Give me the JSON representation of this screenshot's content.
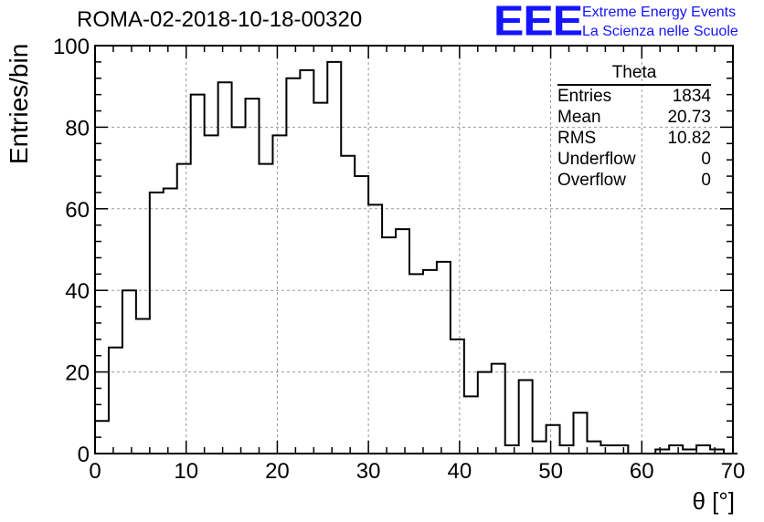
{
  "header": {
    "run_title": "ROMA-02-2018-10-18-00320",
    "logo_mark": "EEE",
    "logo_line1": "Extreme Energy Events",
    "logo_line2": "La Scienza nelle Scuole",
    "logo_color": "#1414ff"
  },
  "stats_box": {
    "title": "Theta",
    "rows": [
      {
        "label": "Entries",
        "value": "1834"
      },
      {
        "label": "Mean",
        "value": "20.73"
      },
      {
        "label": "RMS",
        "value": "10.82"
      },
      {
        "label": "Underflow",
        "value": "0"
      },
      {
        "label": "Overflow",
        "value": "0"
      }
    ]
  },
  "chart_data": {
    "type": "bar",
    "title": "ROMA-02-2018-10-18-00320",
    "xlabel": "θ [°]",
    "ylabel": "Entries/bin",
    "xlim": [
      0,
      70
    ],
    "ylim": [
      0,
      100
    ],
    "xticks": [
      0,
      10,
      20,
      30,
      40,
      50,
      60,
      70
    ],
    "yticks": [
      0,
      20,
      40,
      60,
      80,
      100
    ],
    "grid": true,
    "bin_width": 1.5,
    "bin_start": 0,
    "values": [
      8,
      26,
      40,
      33,
      64,
      65,
      71,
      88,
      78,
      91,
      80,
      87,
      71,
      78,
      92,
      94,
      86,
      96,
      73,
      68,
      61,
      53,
      55,
      44,
      45,
      47,
      28,
      14,
      20,
      22,
      2,
      18,
      3,
      7,
      2,
      10,
      3,
      2,
      2,
      0,
      0,
      1,
      2,
      1,
      2,
      1,
      0
    ]
  }
}
